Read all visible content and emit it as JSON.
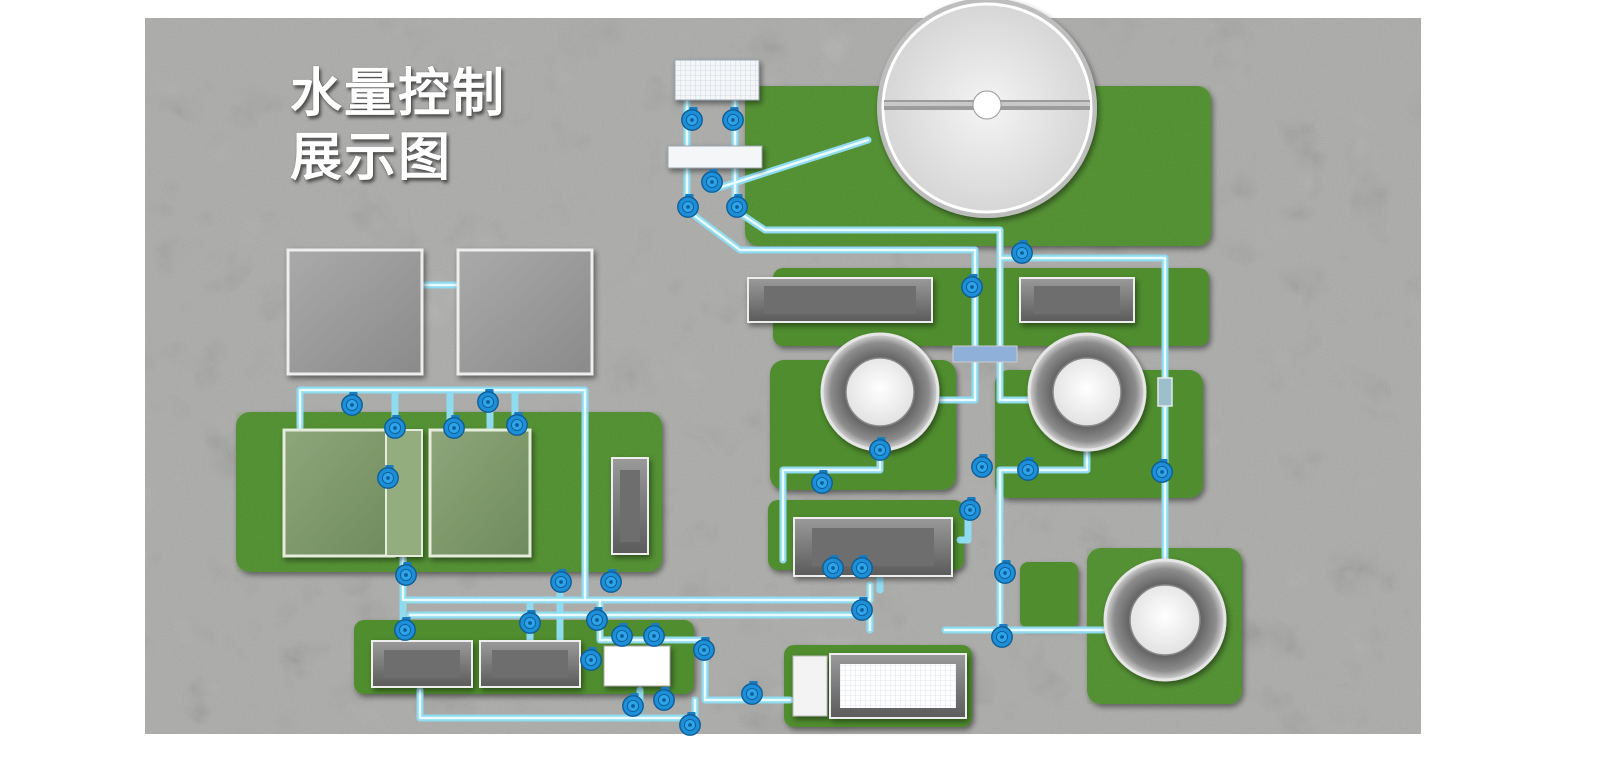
{
  "title": {
    "line1": "水量控制",
    "line2": "展示图"
  },
  "colors": {
    "concrete": "#a9a9a7",
    "grass": "#4f8d2e",
    "pipe": "#8fdcf0",
    "pipe_core": "#e9fbff",
    "pump": "#1d8fd8",
    "tank_gray": "#7a7a7a",
    "clarifier_rim": "#e6e6e6"
  },
  "icons": [
    "flow-meter-icon"
  ]
}
